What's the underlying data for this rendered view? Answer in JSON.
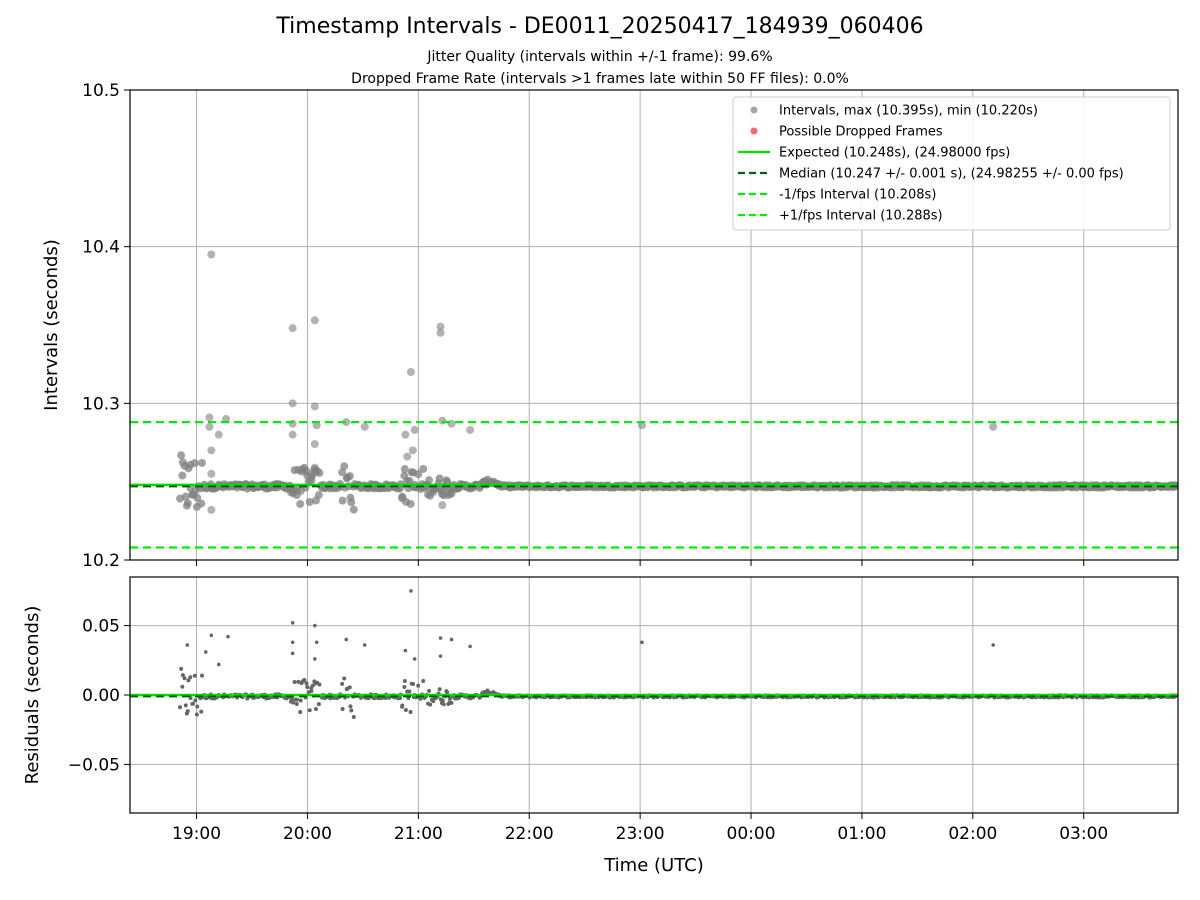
{
  "figure": {
    "title": "Timestamp Intervals - DE0011_20250417_184939_060406",
    "subtitle_jitter": "Jitter Quality (intervals within +/-1 frame): 99.6%",
    "subtitle_dropped": "Dropped Frame Rate (intervals >1 frames late within 50 FF files): 0.0%"
  },
  "colors": {
    "intervals": "#808080",
    "dropped": "#ff0000",
    "expected": "#00e000",
    "median": "#006400",
    "fps_interval": "#00ee00",
    "grid": "#b0b0b0"
  },
  "chart_data": [
    {
      "type": "scatter",
      "panel": "intervals",
      "ylabel": "Intervals (seconds)",
      "xlabel": "",
      "xlim_hours": [
        18.4,
        27.85
      ],
      "ylim": [
        10.2,
        10.5
      ],
      "yticks": [
        10.2,
        10.3,
        10.4,
        10.5
      ],
      "ytick_labels": [
        "10.2",
        "10.3",
        "10.4",
        "10.5"
      ],
      "grid": true,
      "legend_position": "top-right",
      "legend": [
        "Intervals, max (10.395s), min (10.220s)",
        "Possible Dropped Frames",
        "Expected (10.248s), (24.98000 fps)",
        "Median (10.247 +/- 0.001 s), (24.98255 +/- 0.00 fps)",
        "-1/fps Interval (10.208s)",
        "+1/fps Interval (10.288s)"
      ],
      "reference_lines": {
        "expected": 10.248,
        "median": 10.247,
        "minus_one_fps": 10.208,
        "plus_one_fps": 10.288
      },
      "outliers": [
        {
          "t": "19:08",
          "y": 10.395
        },
        {
          "t": "19:07",
          "y": 10.291
        },
        {
          "t": "19:16",
          "y": 10.29
        },
        {
          "t": "19:07",
          "y": 10.285
        },
        {
          "t": "19:12",
          "y": 10.28
        },
        {
          "t": "19:08",
          "y": 10.27
        },
        {
          "t": "19:08",
          "y": 10.255
        },
        {
          "t": "19:08",
          "y": 10.232
        },
        {
          "t": "19:52",
          "y": 10.348
        },
        {
          "t": "19:52",
          "y": 10.3
        },
        {
          "t": "19:52",
          "y": 10.287
        },
        {
          "t": "19:52",
          "y": 10.28
        },
        {
          "t": "20:04",
          "y": 10.353
        },
        {
          "t": "20:04",
          "y": 10.298
        },
        {
          "t": "20:05",
          "y": 10.286
        },
        {
          "t": "20:04",
          "y": 10.274
        },
        {
          "t": "20:04",
          "y": 10.259
        },
        {
          "t": "20:21",
          "y": 10.288
        },
        {
          "t": "20:31",
          "y": 10.285
        },
        {
          "t": "20:56",
          "y": 10.32
        },
        {
          "t": "20:53",
          "y": 10.28
        },
        {
          "t": "20:58",
          "y": 10.283
        },
        {
          "t": "20:57",
          "y": 10.27
        },
        {
          "t": "20:54",
          "y": 10.266
        },
        {
          "t": "21:12",
          "y": 10.349
        },
        {
          "t": "21:12",
          "y": 10.345
        },
        {
          "t": "21:13",
          "y": 10.289
        },
        {
          "t": "21:18",
          "y": 10.287
        },
        {
          "t": "21:28",
          "y": 10.283
        },
        {
          "t": "21:13",
          "y": 10.235
        },
        {
          "t": "23:01",
          "y": 10.286
        },
        {
          "t": "02:11",
          "y": 10.285
        }
      ]
    },
    {
      "type": "scatter",
      "panel": "residuals",
      "ylabel": "Residuals (seconds)",
      "xlabel": "Time (UTC)",
      "xlim_hours": [
        18.4,
        27.85
      ],
      "ylim": [
        -0.085,
        0.085
      ],
      "yticks": [
        -0.05,
        0.0,
        0.05
      ],
      "ytick_labels": [
        "−0.05",
        "0.00",
        "0.05"
      ],
      "xticks_hours": [
        19,
        20,
        21,
        22,
        23,
        24,
        25,
        26,
        27
      ],
      "xtick_labels": [
        "19:00",
        "20:00",
        "21:00",
        "22:00",
        "23:00",
        "00:00",
        "01:00",
        "02:00",
        "03:00"
      ],
      "grid": true,
      "reference_lines": {
        "median_residual": -0.001,
        "zero": 0.0
      },
      "outliers": [
        {
          "t": "18:55",
          "y": 0.036
        },
        {
          "t": "19:08",
          "y": 0.043
        },
        {
          "t": "19:17",
          "y": 0.042
        },
        {
          "t": "19:05",
          "y": 0.031
        },
        {
          "t": "19:12",
          "y": 0.022
        },
        {
          "t": "19:52",
          "y": 0.052
        },
        {
          "t": "19:52",
          "y": 0.038
        },
        {
          "t": "19:52",
          "y": 0.03
        },
        {
          "t": "20:04",
          "y": 0.05
        },
        {
          "t": "20:05",
          "y": 0.038
        },
        {
          "t": "20:04",
          "y": 0.026
        },
        {
          "t": "20:21",
          "y": 0.04
        },
        {
          "t": "20:31",
          "y": 0.036
        },
        {
          "t": "20:56",
          "y": 0.075
        },
        {
          "t": "20:53",
          "y": 0.032
        },
        {
          "t": "20:58",
          "y": 0.026
        },
        {
          "t": "21:12",
          "y": 0.041
        },
        {
          "t": "21:12",
          "y": 0.028
        },
        {
          "t": "21:18",
          "y": 0.04
        },
        {
          "t": "21:28",
          "y": 0.035
        },
        {
          "t": "23:01",
          "y": 0.038
        },
        {
          "t": "02:11",
          "y": 0.036
        }
      ]
    }
  ]
}
